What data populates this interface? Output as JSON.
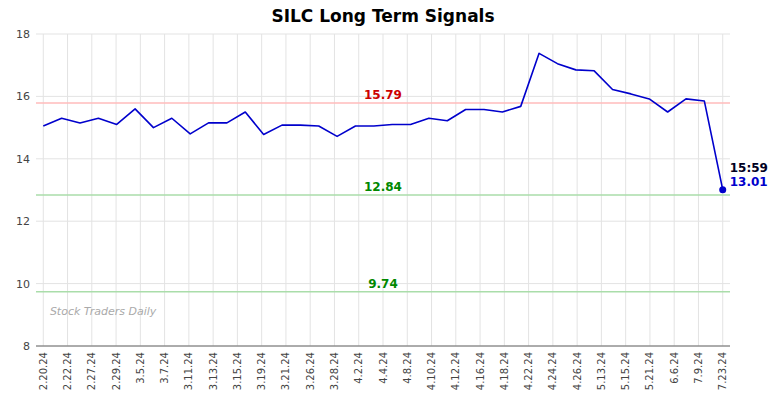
{
  "chart_data": {
    "type": "line",
    "title": "SILC Long Term Signals",
    "x": [
      0,
      0.756756756757,
      1.513513513514,
      2.27027027027,
      3.027027027027,
      3.783783783784,
      4.540540540541,
      5.297297297297,
      6.054054054054,
      6.810810810811,
      7.567567567568,
      8.324324324324,
      9.081081081081,
      9.837837837838,
      10.594594594595,
      11.351351351351,
      12.108108108108,
      12.864864864865,
      13.621621621622,
      14.378378378378,
      15.135135135135,
      15.891891891892,
      16.648648648649,
      17.405405405405,
      18.162162162162,
      18.918918918919,
      19.675675675676,
      20.432432432432,
      21.189189189189,
      21.945945945946,
      22.702702702703,
      23.459459459459,
      24.216216216216,
      24.972972972973,
      25.72972972973,
      26.486486486486,
      27.243243243243,
      28
    ],
    "series": [
      {
        "color": "#0000cc",
        "values": [
          15.05,
          15.3,
          15.15,
          15.3,
          15.1,
          15.6,
          15.0,
          15.3,
          14.8,
          15.15,
          15.15,
          15.5,
          14.78,
          15.08,
          15.08,
          15.05,
          14.72,
          15.05,
          15.05,
          15.1,
          15.1,
          15.3,
          15.22,
          15.58,
          15.58,
          15.5,
          15.68,
          17.38,
          17.05,
          16.85,
          16.82,
          16.22,
          16.08,
          15.92,
          15.5,
          15.92,
          15.85,
          13.01
        ]
      }
    ],
    "xlim": [
      -0.3,
      28.3
    ],
    "xticks": [
      {
        "value": 0,
        "label": "2.20.24"
      },
      {
        "value": 1,
        "label": "2.22.24"
      },
      {
        "value": 2,
        "label": "2.27.24"
      },
      {
        "value": 3,
        "label": "2.29.24"
      },
      {
        "value": 4,
        "label": "3.5.24"
      },
      {
        "value": 5,
        "label": "3.7.24"
      },
      {
        "value": 6,
        "label": "3.11.24"
      },
      {
        "value": 7,
        "label": "3.13.24"
      },
      {
        "value": 8,
        "label": "3.15.24"
      },
      {
        "value": 9,
        "label": "3.19.24"
      },
      {
        "value": 10,
        "label": "3.21.24"
      },
      {
        "value": 11,
        "label": "3.26.24"
      },
      {
        "value": 12,
        "label": "3.28.24"
      },
      {
        "value": 13,
        "label": "4.2.24"
      },
      {
        "value": 14,
        "label": "4.4.24"
      },
      {
        "value": 15,
        "label": "4.8.24"
      },
      {
        "value": 16,
        "label": "4.10.24"
      },
      {
        "value": 17,
        "label": "4.12.24"
      },
      {
        "value": 18,
        "label": "4.16.24"
      },
      {
        "value": 19,
        "label": "4.18.24"
      },
      {
        "value": 20,
        "label": "4.22.24"
      },
      {
        "value": 21,
        "label": "4.24.24"
      },
      {
        "value": 22,
        "label": "4.26.24"
      },
      {
        "value": 23,
        "label": "5.13.24"
      },
      {
        "value": 24,
        "label": "5.15.24"
      },
      {
        "value": 25,
        "label": "5.21.24"
      },
      {
        "value": 26,
        "label": "6.6.24"
      },
      {
        "value": 27,
        "label": "7.9.24"
      },
      {
        "value": 28,
        "label": "7.23.24"
      }
    ],
    "ylim": [
      8,
      18
    ],
    "yticks": [
      8,
      10,
      12,
      14,
      16,
      18
    ],
    "grid": true,
    "reference_lines": [
      {
        "value": 15.79,
        "label": "15.79",
        "color": "#ffbbbb",
        "label_color": "#cc0000"
      },
      {
        "value": 12.84,
        "label": "12.84",
        "color": "#aaddaa",
        "label_color": "#008800"
      },
      {
        "value": 9.74,
        "label": "9.74",
        "color": "#aaddaa",
        "label_color": "#008800"
      }
    ],
    "last_point": {
      "x": 28,
      "y": 13.01,
      "time_label": "15:59",
      "value_label": "13.01",
      "time_color": "#000022",
      "color": "#0000cc"
    },
    "watermark": "Stock Traders Daily"
  }
}
